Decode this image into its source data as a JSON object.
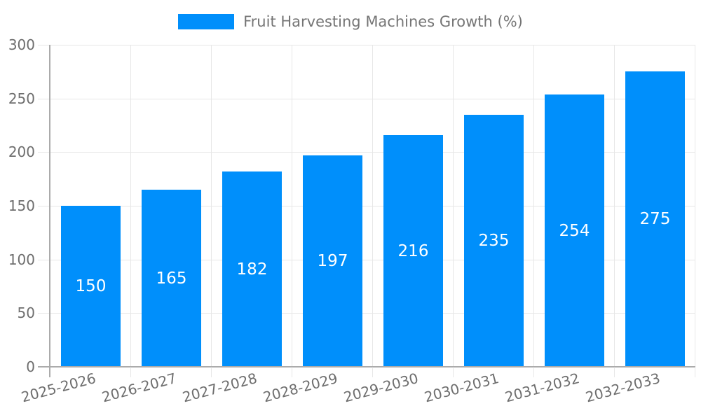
{
  "chart_data": {
    "type": "bar",
    "title": "Fruit Harvesting Machines Growth (%)",
    "legend_position": "top",
    "grid": true,
    "categories": [
      "2025-2026",
      "2026-2027",
      "2027-2028",
      "2028-2029",
      "2029-2030",
      "2030-2031",
      "2031-2032",
      "2032-2033"
    ],
    "values": [
      150,
      165,
      182,
      197,
      216,
      235,
      254,
      275
    ],
    "bar_value_labels": [
      "150",
      "165",
      "182",
      "197",
      "216",
      "235",
      "254",
      "275"
    ],
    "xlabel": "",
    "ylabel": "",
    "ylim": [
      0,
      300
    ],
    "ytick_step": 50,
    "ytick_labels": [
      "0",
      "50",
      "100",
      "150",
      "200",
      "250",
      "300"
    ],
    "colors": {
      "bar": "#008FFB",
      "bar_label": "#ffffff",
      "legend_text": "#757575",
      "axis_text": "#6e6e6e",
      "gridline": "#e7e7e7",
      "axis_line": "#ababab",
      "background": "#ffffff"
    }
  }
}
